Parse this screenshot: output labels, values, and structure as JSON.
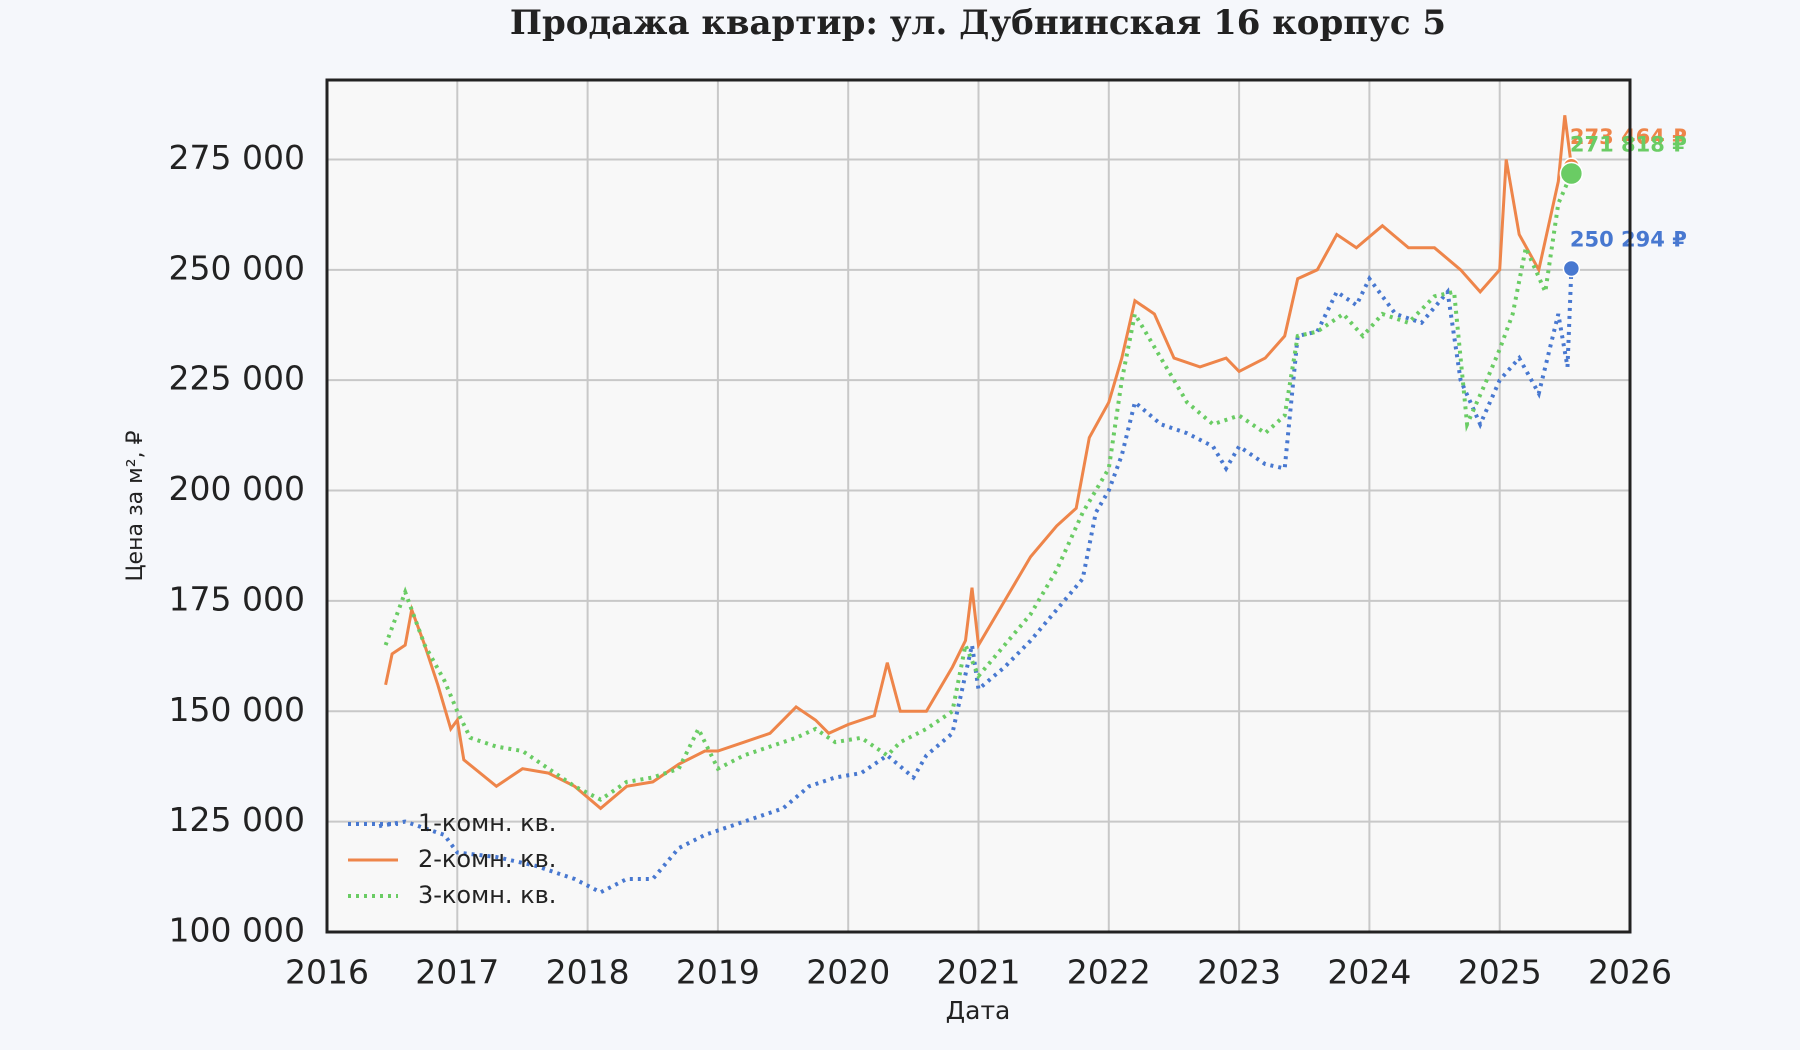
{
  "chart_data": {
    "type": "line",
    "title": "Продажа квартир: ул. Дубнинская 16 корпус 5",
    "xlabel": "Дата",
    "ylabel": "Цена за м², ₽",
    "xlim": [
      2016,
      2026
    ],
    "xticks": [
      2016,
      2017,
      2018,
      2019,
      2020,
      2021,
      2022,
      2023,
      2024,
      2025,
      2026
    ],
    "ylim": [
      100000,
      293000
    ],
    "yticks": [
      {
        "value": 100000,
        "label": "100 000"
      },
      {
        "value": 125000,
        "label": "125 000"
      },
      {
        "value": 150000,
        "label": "150 000"
      },
      {
        "value": 175000,
        "label": "175 000"
      },
      {
        "value": 200000,
        "label": "200 000"
      },
      {
        "value": 225000,
        "label": "225 000"
      },
      {
        "value": 250000,
        "label": "250 000"
      },
      {
        "value": 275000,
        "label": "275 000"
      }
    ],
    "grid": true,
    "legend": "lower left",
    "series": [
      {
        "name": "1-комн. кв.",
        "color": "#4878d0",
        "style": "dotted",
        "x": [
          2016.4,
          2016.6,
          2016.9,
          2017.0,
          2017.3,
          2017.6,
          2017.9,
          2018.1,
          2018.3,
          2018.5,
          2018.7,
          2018.9,
          2019.0,
          2019.3,
          2019.5,
          2019.7,
          2019.9,
          2020.1,
          2020.3,
          2020.5,
          2020.6,
          2020.8,
          2020.95,
          2021.0,
          2021.2,
          2021.4,
          2021.6,
          2021.8,
          2021.9,
          2022.0,
          2022.1,
          2022.2,
          2022.4,
          2022.6,
          2022.8,
          2022.9,
          2023.0,
          2023.2,
          2023.35,
          2023.45,
          2023.6,
          2023.75,
          2023.9,
          2024.0,
          2024.2,
          2024.4,
          2024.6,
          2024.7,
          2024.85,
          2025.0,
          2025.15,
          2025.3,
          2025.45,
          2025.52,
          2025.55
        ],
        "values": [
          124000,
          125000,
          122000,
          118000,
          117000,
          115000,
          112000,
          109000,
          112000,
          112000,
          119000,
          122000,
          123000,
          126000,
          128000,
          133000,
          135000,
          136000,
          140000,
          135000,
          140000,
          145000,
          165000,
          155000,
          160000,
          166000,
          173000,
          180000,
          195000,
          200000,
          208000,
          220000,
          215000,
          213000,
          210000,
          205000,
          210000,
          206000,
          205000,
          235000,
          236000,
          245000,
          242000,
          248000,
          240000,
          238000,
          245000,
          225000,
          215000,
          225000,
          230000,
          222000,
          240000,
          228000,
          250294
        ]
      },
      {
        "name": "2-комн. кв.",
        "color": "#ee854a",
        "style": "solid",
        "x": [
          2016.45,
          2016.5,
          2016.6,
          2016.65,
          2016.75,
          2016.85,
          2016.95,
          2017.0,
          2017.05,
          2017.3,
          2017.5,
          2017.7,
          2017.9,
          2018.1,
          2018.3,
          2018.5,
          2018.7,
          2018.9,
          2019.0,
          2019.2,
          2019.4,
          2019.6,
          2019.75,
          2019.85,
          2020.0,
          2020.2,
          2020.3,
          2020.4,
          2020.6,
          2020.8,
          2020.9,
          2020.95,
          2021.0,
          2021.2,
          2021.4,
          2021.6,
          2021.75,
          2021.85,
          2022.0,
          2022.1,
          2022.2,
          2022.35,
          2022.5,
          2022.7,
          2022.9,
          2023.0,
          2023.2,
          2023.35,
          2023.45,
          2023.6,
          2023.75,
          2023.9,
          2024.1,
          2024.3,
          2024.5,
          2024.7,
          2024.85,
          2025.0,
          2025.05,
          2025.15,
          2025.3,
          2025.45,
          2025.5,
          2025.55
        ],
        "values": [
          156000,
          163000,
          165000,
          173000,
          165000,
          156000,
          146000,
          148000,
          139000,
          133000,
          137000,
          136000,
          133000,
          128000,
          133000,
          134000,
          138000,
          141000,
          141000,
          143000,
          145000,
          151000,
          148000,
          145000,
          147000,
          149000,
          161000,
          150000,
          150000,
          160000,
          166000,
          178000,
          165000,
          175000,
          185000,
          192000,
          196000,
          212000,
          220000,
          230000,
          243000,
          240000,
          230000,
          228000,
          230000,
          227000,
          230000,
          235000,
          248000,
          250000,
          258000,
          255000,
          260000,
          255000,
          255000,
          250000,
          245000,
          250000,
          275000,
          258000,
          250000,
          270000,
          285000,
          273464
        ]
      },
      {
        "name": "3-комн. кв.",
        "color": "#6acc64",
        "style": "dotted",
        "x": [
          2016.45,
          2016.6,
          2016.75,
          2016.9,
          2017.0,
          2017.1,
          2017.3,
          2017.5,
          2017.7,
          2017.9,
          2018.1,
          2018.3,
          2018.5,
          2018.7,
          2018.85,
          2019.0,
          2019.2,
          2019.4,
          2019.6,
          2019.75,
          2019.9,
          2020.1,
          2020.3,
          2020.4,
          2020.6,
          2020.8,
          2020.9,
          2021.0,
          2021.2,
          2021.4,
          2021.6,
          2021.8,
          2022.0,
          2022.1,
          2022.2,
          2022.4,
          2022.6,
          2022.8,
          2023.0,
          2023.2,
          2023.35,
          2023.45,
          2023.6,
          2023.8,
          2023.95,
          2024.1,
          2024.3,
          2024.5,
          2024.65,
          2024.75,
          2024.9,
          2025.0,
          2025.1,
          2025.2,
          2025.35,
          2025.45,
          2025.55
        ],
        "values": [
          165000,
          177000,
          165000,
          157000,
          150000,
          144000,
          142000,
          141000,
          137000,
          133000,
          130000,
          134000,
          135000,
          137000,
          146000,
          137000,
          140000,
          142000,
          144000,
          146000,
          143000,
          144000,
          140000,
          143000,
          146000,
          150000,
          165000,
          158000,
          165000,
          172000,
          182000,
          195000,
          205000,
          225000,
          240000,
          230000,
          220000,
          215000,
          217000,
          213000,
          217000,
          235000,
          236000,
          240000,
          235000,
          240000,
          238000,
          244000,
          245000,
          215000,
          225000,
          232000,
          240000,
          255000,
          245000,
          265000,
          271818
        ]
      }
    ],
    "annotations": [
      {
        "text": "273 464 ₽",
        "x": 2025.55,
        "y": 273464,
        "color": "#ee854a"
      },
      {
        "text": "271 818 ₽",
        "x": 2025.55,
        "y": 271818,
        "color": "#6acc64"
      },
      {
        "text": "250 294 ₽",
        "x": 2025.55,
        "y": 250294,
        "color": "#4878d0"
      }
    ]
  }
}
